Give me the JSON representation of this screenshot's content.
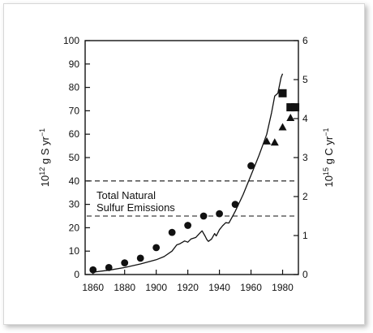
{
  "chart_data": {
    "type": "scatter",
    "title": "",
    "xlabel": "",
    "x_ticks": [
      "1860",
      "1880",
      "1900",
      "1920",
      "1940",
      "1960",
      "1980"
    ],
    "xlim": [
      1855,
      1990
    ],
    "ylabel_left": {
      "base": "10",
      "exp": "12",
      "rest": " g S yr",
      "sup": "−1"
    },
    "ylabel_right": {
      "base": "10",
      "exp": "15",
      "rest": " g C yr",
      "sup": "−1"
    },
    "ylim_left": [
      0,
      100
    ],
    "ylim_right": [
      0,
      6
    ],
    "y_ticks_left": [
      "0",
      "10",
      "20",
      "30",
      "40",
      "50",
      "60",
      "70",
      "80",
      "90",
      "100"
    ],
    "y_ticks_right": [
      "0",
      "1",
      "2",
      "3",
      "4",
      "5",
      "6"
    ],
    "grid": false,
    "annotation_lines": [
      "Total Natural",
      "Sulfur Emissions"
    ],
    "reference_lines_left": [
      40,
      25
    ],
    "series": [
      {
        "marker": "circle",
        "axis": "left",
        "points": [
          [
            1860,
            2
          ],
          [
            1870,
            3
          ],
          [
            1880,
            5
          ],
          [
            1890,
            7
          ],
          [
            1900,
            11.5
          ],
          [
            1910,
            18
          ],
          [
            1920,
            21
          ],
          [
            1930,
            25
          ],
          [
            1940,
            26
          ],
          [
            1950,
            30
          ],
          [
            1960,
            46.5
          ]
        ]
      },
      {
        "marker": "square",
        "axis": "left",
        "points": [
          [
            1980,
            77.5
          ],
          [
            1985,
            71.5
          ],
          [
            1988,
            71.5
          ]
        ]
      },
      {
        "marker": "triangle",
        "axis": "left",
        "points": [
          [
            1970,
            57
          ],
          [
            1975,
            56.5
          ],
          [
            1980,
            63
          ],
          [
            1985,
            67
          ]
        ]
      },
      {
        "marker": "line",
        "axis": "right",
        "points": [
          [
            1860,
            0.06
          ],
          [
            1870,
            0.11
          ],
          [
            1880,
            0.18
          ],
          [
            1890,
            0.27
          ],
          [
            1900,
            0.38
          ],
          [
            1905,
            0.46
          ],
          [
            1910,
            0.6
          ],
          [
            1913,
            0.76
          ],
          [
            1915,
            0.79
          ],
          [
            1918,
            0.86
          ],
          [
            1920,
            0.83
          ],
          [
            1922,
            0.91
          ],
          [
            1925,
            0.95
          ],
          [
            1928,
            1.08
          ],
          [
            1929,
            1.12
          ],
          [
            1931,
            0.98
          ],
          [
            1932,
            0.9
          ],
          [
            1933,
            0.85
          ],
          [
            1935,
            0.91
          ],
          [
            1937,
            1.05
          ],
          [
            1938,
            0.99
          ],
          [
            1940,
            1.15
          ],
          [
            1942,
            1.25
          ],
          [
            1944,
            1.33
          ],
          [
            1946,
            1.32
          ],
          [
            1948,
            1.47
          ],
          [
            1950,
            1.62
          ],
          [
            1955,
            2.05
          ],
          [
            1960,
            2.55
          ],
          [
            1965,
            3.05
          ],
          [
            1970,
            3.6
          ],
          [
            1973,
            4.15
          ],
          [
            1975,
            4.58
          ],
          [
            1977,
            4.65
          ],
          [
            1979,
            5.05
          ],
          [
            1980,
            5.15
          ]
        ]
      }
    ]
  }
}
